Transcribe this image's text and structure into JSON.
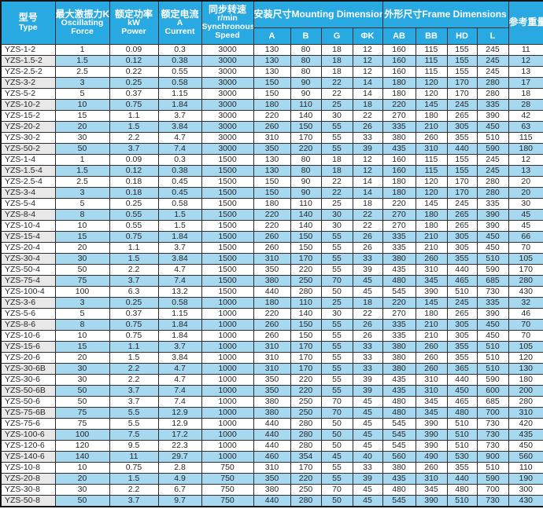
{
  "colors": {
    "header_bg": "#29a9e1",
    "header_text": "#ffffff",
    "row_alt_bg": "#a6d8f0",
    "type_col_alt_bg": "#e8e8e8",
    "border": "#2e2e2e"
  },
  "table": {
    "header": {
      "type_zh": "型号",
      "type_en": "Type",
      "force_zh": "最大激振力KN",
      "force_en1": "Oscillating",
      "force_en2": "Force",
      "power_zh": "额定功率",
      "power_unit": "kW",
      "power_en": "Power",
      "current_zh": "额定电流",
      "current_unit": "A",
      "current_en": "Current",
      "speed_zh": "同步转速",
      "speed_unit": "r/min",
      "speed_en1": "Synchronous",
      "speed_en2": "Speed",
      "mounting_group": "安装尺寸Mounting Dimensions",
      "mounting_cols": [
        "A",
        "B",
        "G",
        "ΦK"
      ],
      "frame_group": "外形尺寸Frame Dimensions",
      "frame_cols": [
        "AB",
        "BB",
        "HD",
        "L"
      ],
      "weight": "参考重量"
    },
    "rows": [
      [
        "YZS-1-2",
        "1",
        "0.09",
        "0.3",
        "3000",
        "130",
        "80",
        "18",
        "12",
        "160",
        "115",
        "155",
        "245",
        "11"
      ],
      [
        "YZS-1.5-2",
        "1.5",
        "0.12",
        "0.38",
        "3000",
        "130",
        "80",
        "18",
        "12",
        "160",
        "115",
        "155",
        "245",
        "12"
      ],
      [
        "YZS-2.5-2",
        "2.5",
        "0.22",
        "0.55",
        "3000",
        "130",
        "80",
        "18",
        "12",
        "160",
        "115",
        "155",
        "245",
        "13"
      ],
      [
        "YZS-3-2",
        "3",
        "0.25",
        "0.58",
        "3000",
        "150",
        "90",
        "22",
        "14",
        "180",
        "120",
        "170",
        "280",
        "17"
      ],
      [
        "YZS-5-2",
        "5",
        "0.37",
        "1.15",
        "3000",
        "150",
        "90",
        "22",
        "14",
        "180",
        "120",
        "170",
        "280",
        "18"
      ],
      [
        "YZS-10-2",
        "10",
        "0.75",
        "1.84",
        "3000",
        "180",
        "110",
        "25",
        "18",
        "220",
        "145",
        "245",
        "335",
        "28"
      ],
      [
        "YZS-15-2",
        "15",
        "1.1",
        "3.7",
        "3000",
        "220",
        "140",
        "30",
        "22",
        "270",
        "180",
        "265",
        "390",
        "42"
      ],
      [
        "YZS-20-2",
        "20",
        "1.5",
        "3.84",
        "3000",
        "260",
        "150",
        "55",
        "26",
        "335",
        "210",
        "305",
        "450",
        "63"
      ],
      [
        "YZS-30-2",
        "30",
        "2.2",
        "4.7",
        "3000",
        "310",
        "170",
        "55",
        "33",
        "380",
        "260",
        "355",
        "510",
        "115"
      ],
      [
        "YZS-50-2",
        "50",
        "3.7",
        "7.4",
        "3000",
        "350",
        "220",
        "55",
        "39",
        "435",
        "310",
        "440",
        "590",
        "180"
      ],
      [
        "YZS-1-4",
        "1",
        "0.09",
        "0.3",
        "1500",
        "130",
        "80",
        "18",
        "12",
        "160",
        "115",
        "155",
        "245",
        "12"
      ],
      [
        "YZS-1.5-4",
        "1.5",
        "0.12",
        "0.38",
        "1500",
        "130",
        "80",
        "18",
        "12",
        "160",
        "115",
        "155",
        "245",
        "13"
      ],
      [
        "YZS-2.5-4",
        "2.5",
        "0.18",
        "0.45",
        "1500",
        "150",
        "90",
        "22",
        "14",
        "180",
        "120",
        "170",
        "280",
        "20"
      ],
      [
        "YZS-3-4",
        "3",
        "0.18",
        "0.45",
        "1500",
        "150",
        "90",
        "22",
        "14",
        "180",
        "120",
        "170",
        "280",
        "20"
      ],
      [
        "YZS-5-4",
        "5",
        "0.25",
        "0.58",
        "1500",
        "180",
        "110",
        "25",
        "18",
        "220",
        "145",
        "245",
        "335",
        "30"
      ],
      [
        "YZS-8-4",
        "8",
        "0.55",
        "1.5",
        "1500",
        "220",
        "140",
        "30",
        "22",
        "270",
        "180",
        "265",
        "390",
        "45"
      ],
      [
        "YZS-10-4",
        "10",
        "0.55",
        "1.5",
        "1500",
        "220",
        "140",
        "30",
        "22",
        "270",
        "180",
        "265",
        "390",
        "45"
      ],
      [
        "YZS-15-4",
        "15",
        "0.75",
        "1.84",
        "1500",
        "260",
        "150",
        "55",
        "26",
        "335",
        "210",
        "305",
        "450",
        "66"
      ],
      [
        "YZS-20-4",
        "20",
        "1.1",
        "3.7",
        "1500",
        "260",
        "150",
        "55",
        "26",
        "335",
        "210",
        "305",
        "450",
        "70"
      ],
      [
        "YZS-30-4",
        "30",
        "1.5",
        "3.84",
        "1500",
        "310",
        "170",
        "55",
        "33",
        "380",
        "260",
        "355",
        "510",
        "105"
      ],
      [
        "YZS-50-4",
        "50",
        "2.2",
        "4.7",
        "1500",
        "350",
        "220",
        "55",
        "39",
        "435",
        "310",
        "440",
        "590",
        "170"
      ],
      [
        "YZS-75-4",
        "75",
        "3.7",
        "7.4",
        "1500",
        "380",
        "250",
        "70",
        "45",
        "480",
        "345",
        "465",
        "685",
        "280"
      ],
      [
        "YZS-100-4",
        "100",
        "6.3",
        "13.2",
        "1500",
        "440",
        "280",
        "50",
        "45",
        "545",
        "390",
        "510",
        "730",
        "430"
      ],
      [
        "YZS-3-6",
        "3",
        "0.25",
        "0.58",
        "1000",
        "180",
        "110",
        "25",
        "18",
        "220",
        "145",
        "245",
        "335",
        "32"
      ],
      [
        "YZS-5-6",
        "5",
        "0.37",
        "1.15",
        "1000",
        "220",
        "140",
        "30",
        "22",
        "270",
        "180",
        "265",
        "390",
        "46"
      ],
      [
        "YZS-8-6",
        "8",
        "0.75",
        "1.84",
        "1000",
        "260",
        "150",
        "55",
        "26",
        "335",
        "210",
        "305",
        "450",
        "70"
      ],
      [
        "YZS-10-6",
        "10",
        "0.75",
        "1.84",
        "1000",
        "260",
        "150",
        "55",
        "26",
        "335",
        "210",
        "305",
        "450",
        "70"
      ],
      [
        "YZS-15-6",
        "15",
        "1.1",
        "3.7",
        "1000",
        "310",
        "170",
        "55",
        "33",
        "380",
        "260",
        "355",
        "510",
        "105"
      ],
      [
        "YZS-20-6",
        "20",
        "1.5",
        "3.84",
        "1000",
        "310",
        "170",
        "55",
        "33",
        "380",
        "260",
        "355",
        "510",
        "120"
      ],
      [
        "YZS-30-6B",
        "30",
        "2.2",
        "4.7",
        "1000",
        "310",
        "170",
        "55",
        "33",
        "380",
        "260",
        "365",
        "510",
        "130"
      ],
      [
        "YZS-30-6",
        "30",
        "2.2",
        "4.7",
        "1000",
        "350",
        "220",
        "55",
        "39",
        "435",
        "310",
        "440",
        "590",
        "180"
      ],
      [
        "YZS-50-6B",
        "50",
        "3.7",
        "7.4",
        "1000",
        "350",
        "220",
        "55",
        "39",
        "435",
        "310",
        "450",
        "600",
        "200"
      ],
      [
        "YZS-50-6",
        "50",
        "3.7",
        "7.4",
        "1000",
        "380",
        "250",
        "70",
        "45",
        "480",
        "345",
        "465",
        "685",
        "280"
      ],
      [
        "YZS-75-6B",
        "75",
        "5.5",
        "12.9",
        "1000",
        "380",
        "250",
        "70",
        "45",
        "480",
        "345",
        "480",
        "700",
        "310"
      ],
      [
        "YZS-75-6",
        "75",
        "5.5",
        "12.9",
        "1000",
        "440",
        "280",
        "50",
        "45",
        "545",
        "390",
        "510",
        "730",
        "420"
      ],
      [
        "YZS-100-6",
        "100",
        "7.5",
        "17.2",
        "1000",
        "440",
        "280",
        "50",
        "45",
        "545",
        "390",
        "510",
        "730",
        "435"
      ],
      [
        "YZS-120-6",
        "120",
        "9.5",
        "22.3",
        "1000",
        "440",
        "280",
        "50",
        "45",
        "545",
        "390",
        "510",
        "730",
        "450"
      ],
      [
        "YZS-140-6",
        "140",
        "11",
        "29.7",
        "1000",
        "460",
        "354",
        "45",
        "40",
        "560",
        "490",
        "530",
        "900",
        "560"
      ],
      [
        "YZS-10-8",
        "10",
        "0.75",
        "2.8",
        "750",
        "310",
        "170",
        "55",
        "33",
        "380",
        "260",
        "355",
        "510",
        "110"
      ],
      [
        "YZS-20-8",
        "20",
        "1.5",
        "4.9",
        "750",
        "350",
        "220",
        "55",
        "39",
        "435",
        "310",
        "440",
        "590",
        "190"
      ],
      [
        "YZS-30-8",
        "30",
        "2.2",
        "6.7",
        "750",
        "380",
        "250",
        "70",
        "45",
        "480",
        "345",
        "480",
        "700",
        "300"
      ],
      [
        "YZS-50-8",
        "50",
        "3.7",
        "9.7",
        "750",
        "440",
        "280",
        "50",
        "45",
        "545",
        "390",
        "510",
        "730",
        "430"
      ]
    ]
  }
}
